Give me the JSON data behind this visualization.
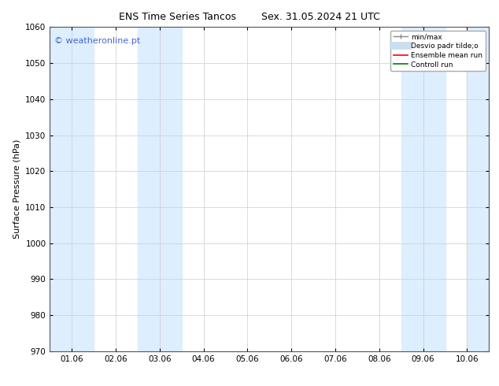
{
  "title_left": "ENS Time Series Tancos",
  "title_right": "Sex. 31.05.2024 21 UTC",
  "ylabel": "Surface Pressure (hPa)",
  "ylim": [
    970,
    1060
  ],
  "yticks": [
    970,
    980,
    990,
    1000,
    1010,
    1020,
    1030,
    1040,
    1050,
    1060
  ],
  "xtick_labels": [
    "01.06",
    "02.06",
    "03.06",
    "04.06",
    "05.06",
    "06.06",
    "07.06",
    "08.06",
    "09.06",
    "10.06"
  ],
  "xtick_positions": [
    0,
    1,
    2,
    3,
    4,
    5,
    6,
    7,
    8,
    9
  ],
  "xlim": [
    -0.5,
    9.5
  ],
  "shaded_bands": [
    {
      "x_start": -0.5,
      "x_end": 0.5,
      "color": "#ddeeff"
    },
    {
      "x_start": 1.5,
      "x_end": 2.5,
      "color": "#ddeeff"
    },
    {
      "x_start": 7.5,
      "x_end": 8.5,
      "color": "#ddeeff"
    },
    {
      "x_start": 9.0,
      "x_end": 9.5,
      "color": "#ddeeff"
    }
  ],
  "watermark_text": "© weatheronline.pt",
  "watermark_color": "#4466cc",
  "watermark_fontsize": 8,
  "background_color": "#ffffff",
  "grid_color": "#cccccc",
  "tick_fontsize": 7.5,
  "ylabel_fontsize": 8
}
